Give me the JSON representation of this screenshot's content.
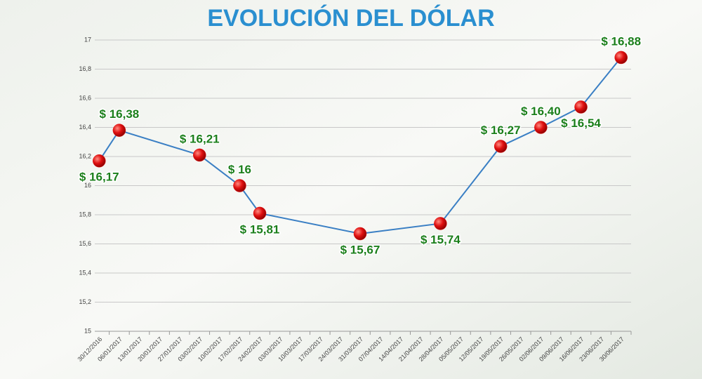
{
  "chart_data": {
    "type": "line",
    "title": "EVOLUCIÓN DEL DÓLAR",
    "categories": [
      "30/12/2016",
      "06/01/2017",
      "13/01/2017",
      "20/01/2017",
      "27/01/2017",
      "03/02/2017",
      "10/02/2017",
      "17/02/2017",
      "24/02/2017",
      "03/03/2017",
      "10/03/2017",
      "17/03/2017",
      "24/03/2017",
      "31/03/2017",
      "07/04/2017",
      "14/04/2017",
      "21/04/2017",
      "28/04/2017",
      "05/05/2017",
      "12/05/2017",
      "19/05/2017",
      "26/05/2017",
      "02/06/2017",
      "09/06/2017",
      "16/06/2017",
      "23/06/2017",
      "30/06/2017"
    ],
    "x": [
      "30/12/2016",
      "06/01/2017",
      "03/02/2017",
      "17/02/2017",
      "24/02/2017",
      "31/03/2017",
      "28/04/2017",
      "19/05/2017",
      "02/06/2017",
      "16/06/2017",
      "30/06/2017"
    ],
    "values": [
      16.17,
      16.38,
      16.21,
      16,
      15.81,
      15.67,
      15.74,
      16.27,
      16.4,
      16.54,
      16.88
    ],
    "value_labels": [
      "$ 16,17",
      "$ 16,38",
      "$ 16,21",
      "$ 16",
      "$ 15,81",
      "$ 15,67",
      "$ 15,74",
      "$ 16,27",
      "$ 16,40",
      "$ 16,54",
      "$ 16,88"
    ],
    "color": "#3a7fc4",
    "marker_color": "#e01010",
    "label_color": "#1b7f1b",
    "ylim": [
      15,
      17
    ],
    "yticks": [
      15,
      {
        "value": 15.2,
        "label": "15,2"
      },
      {
        "value": 15.4,
        "label": "15,4"
      },
      {
        "value": 15.6,
        "label": "15,6"
      },
      {
        "value": 15.8,
        "label": "15,8"
      },
      16,
      {
        "value": 16.2,
        "label": "16,2"
      },
      {
        "value": 16.4,
        "label": "16,4"
      },
      {
        "value": 16.6,
        "label": "16,6"
      },
      {
        "value": 16.8,
        "label": "16,8"
      },
      17
    ],
    "grid": true
  }
}
